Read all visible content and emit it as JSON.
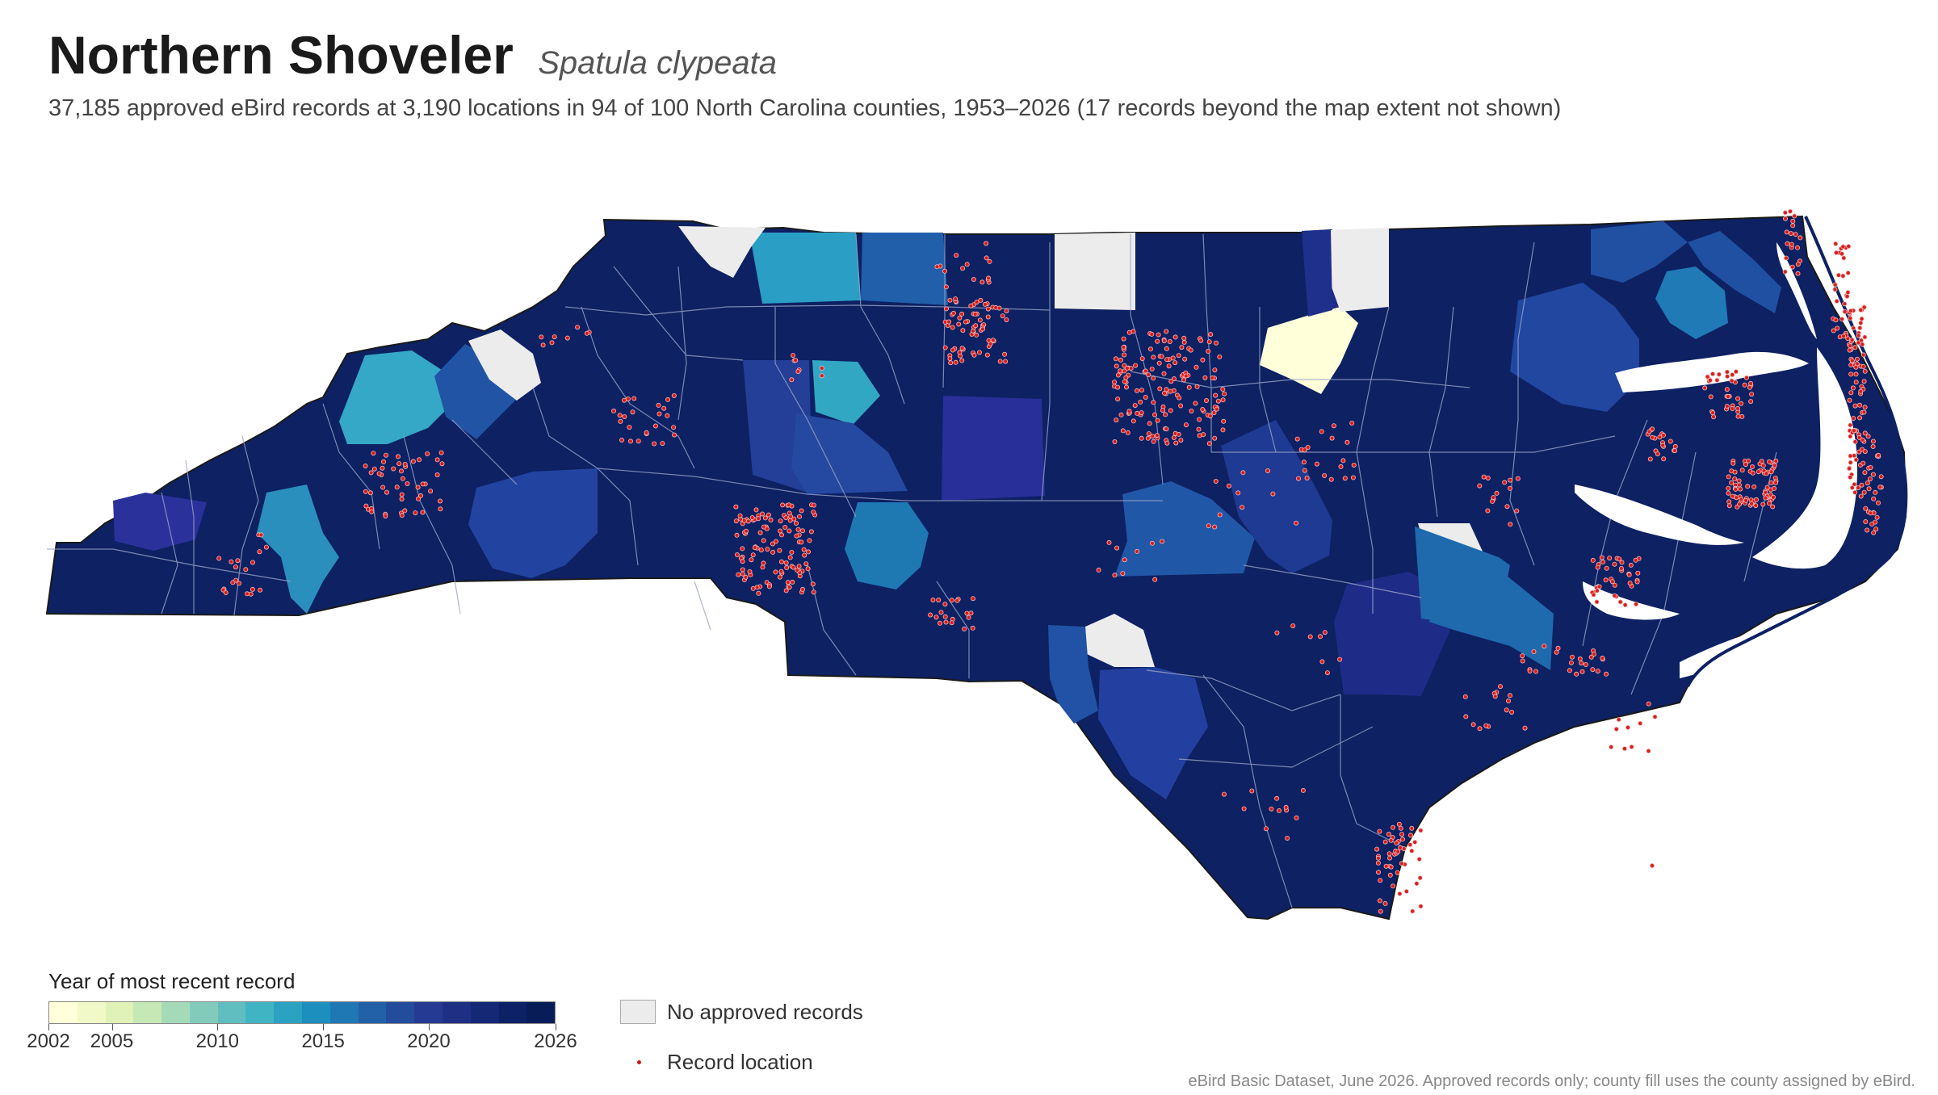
{
  "title": {
    "common_name": "Northern Shoveler",
    "scientific_name": "Spatula clypeata"
  },
  "subtitle": "37,185 approved eBird records at 3,190 locations in 94 of 100 North Carolina counties, 1953–2026 (17 records beyond the map extent not shown)",
  "legend": {
    "colorbar_title": "Year of most recent record",
    "ticks": [
      "2002",
      "2005",
      "2010",
      "2015",
      "2020",
      "2026"
    ],
    "no_records_label": "No approved records",
    "record_location_label": "Record location"
  },
  "colors": {
    "no_records": "#ececec",
    "record_dot": "#cc1a1a",
    "ramp": [
      "#ffffd9",
      "#f1f9c8",
      "#e0f2b7",
      "#c5e8b4",
      "#a4dab8",
      "#82cbbb",
      "#60bec0",
      "#41b4c4",
      "#2ba2c2",
      "#1d8fbe",
      "#1f78b4",
      "#2261a8",
      "#244c9d",
      "#253a92",
      "#1f2f84",
      "#142876",
      "#0c2166",
      "#081d58"
    ],
    "state_outline": "#1a1a1a",
    "county_border": "#9aa4c8"
  },
  "source_note": "eBird Basic Dataset, June 2026. Approved records only; county fill uses the county assigned by eBird."
}
